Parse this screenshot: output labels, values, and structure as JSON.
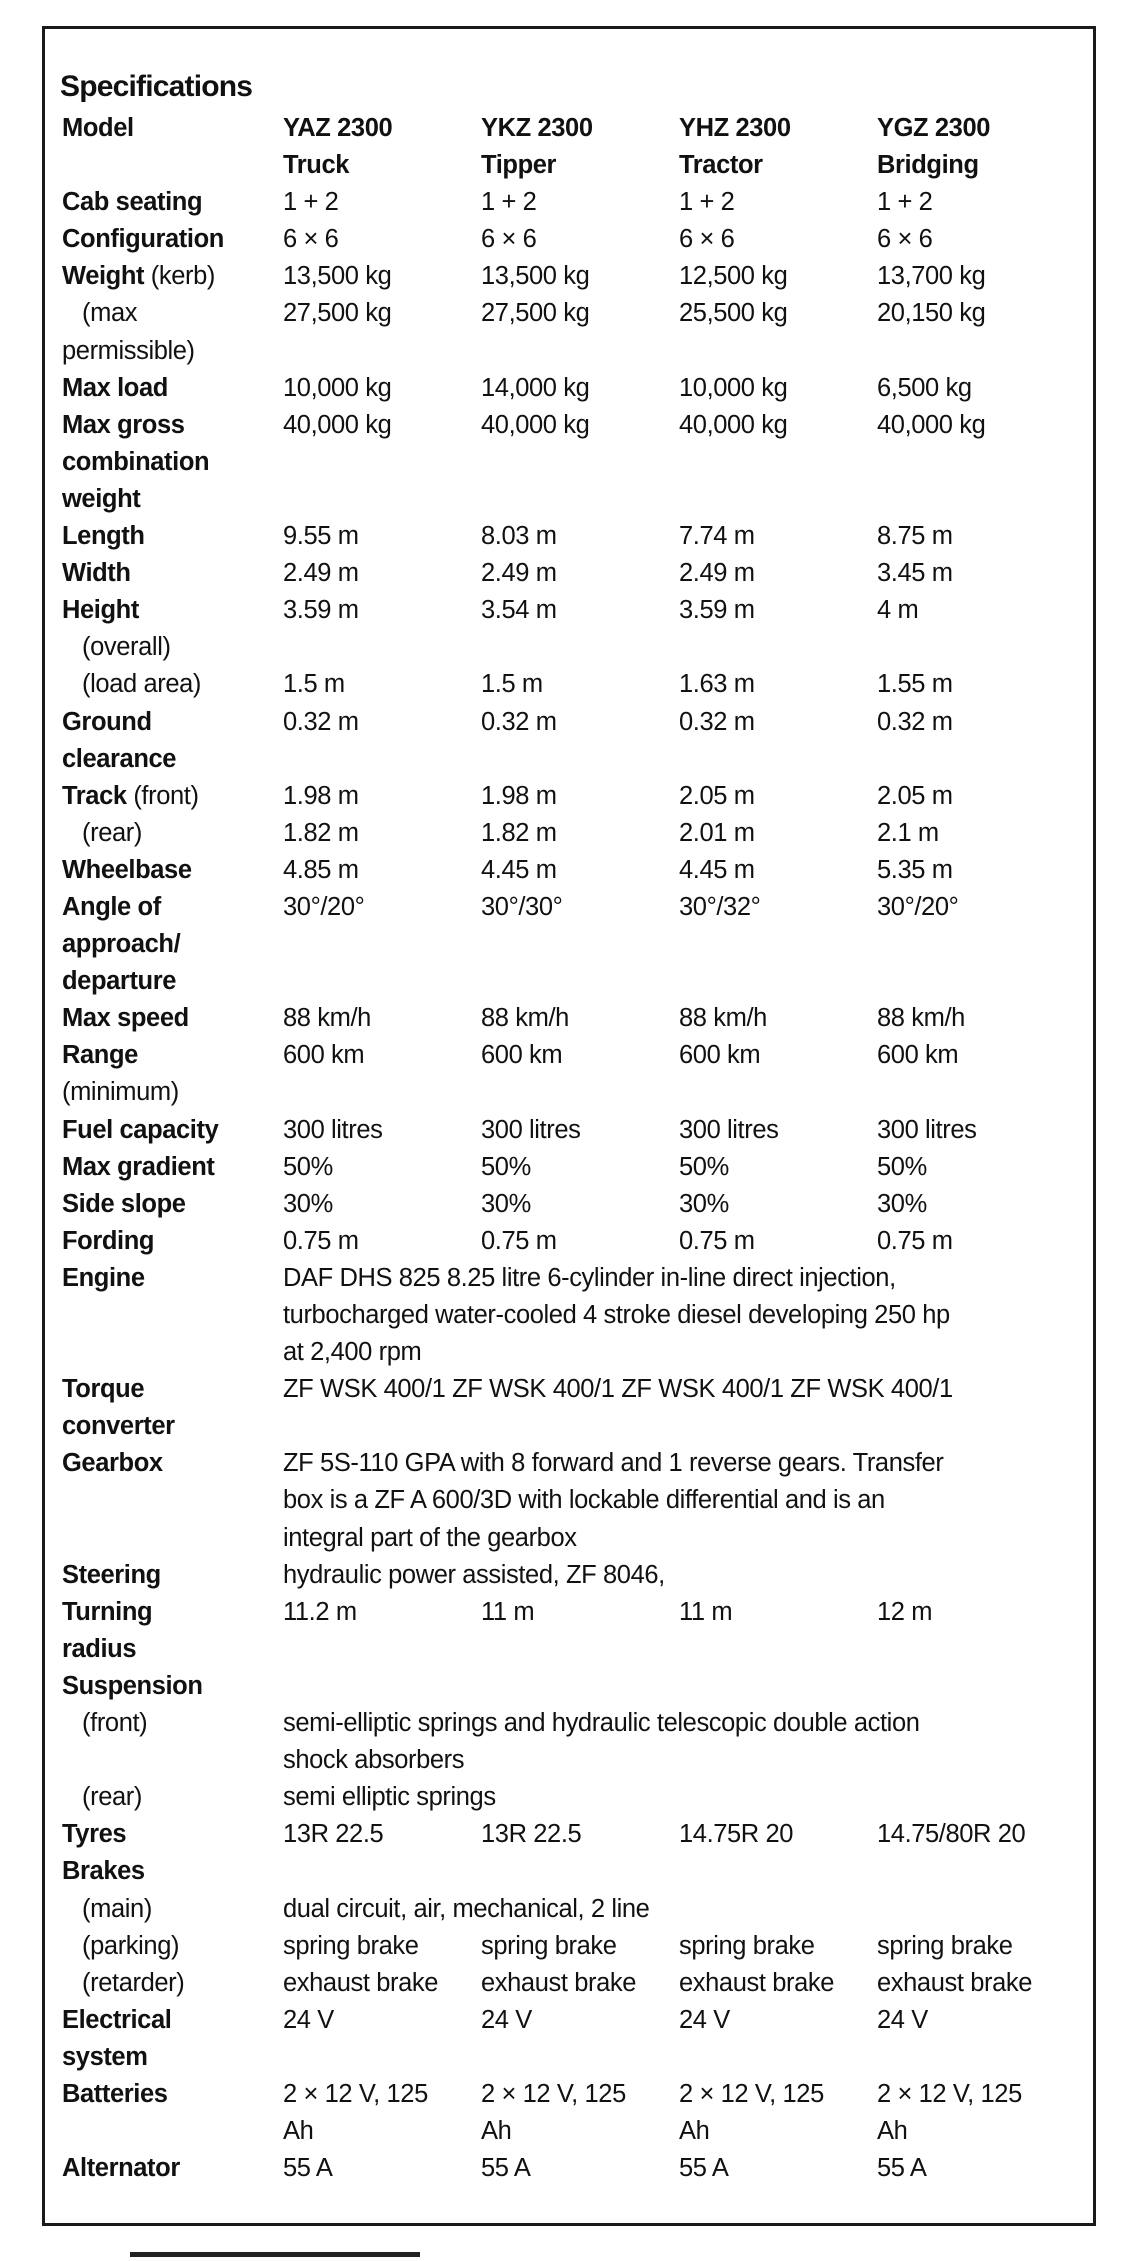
{
  "title": "Specifications",
  "rows": [
    {
      "b": "Model",
      "n": "",
      "v": [
        "YAZ 2300\nTruck",
        "YKZ 2300\nTipper",
        "YHZ 2300\nTractor",
        "YGZ 2300\nBridging"
      ],
      "cls": "model"
    },
    {
      "b": "Cab seating",
      "n": "",
      "v": [
        "1 + 2",
        "1 + 2",
        "1 + 2",
        "1 + 2"
      ]
    },
    {
      "b": "Configuration",
      "n": "",
      "v": [
        "6 × 6",
        "6 × 6",
        "6 × 6",
        "6 × 6"
      ]
    },
    {
      "b": "Weight",
      "n": " (kerb)",
      "v": [
        "13,500 kg",
        "13,500 kg",
        "12,500 kg",
        "13,700 kg"
      ]
    },
    {
      "b": "",
      "n": "   (max\npermissible)",
      "v": [
        "27,500 kg",
        "27,500 kg",
        "25,500 kg",
        "20,150 kg"
      ]
    },
    {
      "b": "Max load",
      "n": "",
      "v": [
        "10,000 kg",
        "14,000 kg",
        "10,000 kg",
        "6,500 kg"
      ]
    },
    {
      "b": "Max gross\ncombination\nweight",
      "n": "",
      "v": [
        "40,000 kg",
        "40,000 kg",
        "40,000 kg",
        "40,000 kg"
      ]
    },
    {
      "b": "Length",
      "n": "",
      "v": [
        "9.55 m",
        "8.03 m",
        "7.74 m",
        "8.75 m"
      ]
    },
    {
      "b": "Width",
      "n": "",
      "v": [
        "2.49 m",
        "2.49 m",
        "2.49 m",
        "3.45 m"
      ]
    },
    {
      "b": "Height",
      "n": "\n   (overall)",
      "v": [
        "3.59 m",
        "3.54 m",
        "3.59 m",
        "4 m"
      ]
    },
    {
      "b": "",
      "n": "   (load area)",
      "v": [
        "1.5 m",
        "1.5 m",
        "1.63 m",
        "1.55 m"
      ]
    },
    {
      "b": "Ground\nclearance",
      "n": "",
      "v": [
        "0.32 m",
        "0.32 m",
        "0.32 m",
        "0.32 m"
      ]
    },
    {
      "b": "Track",
      "n": " (front)",
      "v": [
        "1.98 m",
        "1.98 m",
        "2.05 m",
        "2.05 m"
      ]
    },
    {
      "b": "",
      "n": "   (rear)",
      "v": [
        "1.82 m",
        "1.82 m",
        "2.01 m",
        "2.1 m"
      ]
    },
    {
      "b": "Wheelbase",
      "n": "",
      "v": [
        "4.85 m",
        "4.45 m",
        "4.45 m",
        "5.35 m"
      ]
    },
    {
      "b": "Angle of\napproach/\ndeparture",
      "n": "",
      "v": [
        "30°/20°",
        "30°/30°",
        "30°/32°",
        "30°/20°"
      ]
    },
    {
      "b": "Max speed",
      "n": "",
      "v": [
        "88 km/h",
        "88 km/h",
        "88 km/h",
        "88 km/h"
      ]
    },
    {
      "b": "Range",
      "n": "\n(minimum)",
      "v": [
        "600 km",
        "600 km",
        "600 km",
        "600 km"
      ]
    },
    {
      "b": "Fuel capacity",
      "n": "",
      "v": [
        "300 litres",
        "300 litres",
        "300 litres",
        "300 litres"
      ]
    },
    {
      "b": "Max gradient",
      "n": "",
      "v": [
        "50%",
        "50%",
        "50%",
        "50%"
      ]
    },
    {
      "b": "Side slope",
      "n": "",
      "v": [
        "30%",
        "30%",
        "30%",
        "30%"
      ]
    },
    {
      "b": "Fording",
      "n": "",
      "v": [
        "0.75 m",
        "0.75 m",
        "0.75 m",
        "0.75 m"
      ]
    },
    {
      "b": "Engine",
      "n": "",
      "s": "DAF DHS 825 8.25 litre 6-cylinder in-line direct injection,\nturbocharged water-cooled 4 stroke diesel developing 250 hp\nat 2,400 rpm"
    },
    {
      "b": "Torque\nconverter",
      "n": "",
      "s": "ZF WSK 400/1 ZF WSK 400/1 ZF WSK 400/1 ZF WSK 400/1"
    },
    {
      "b": "Gearbox",
      "n": "",
      "s": "ZF 5S-110 GPA with 8 forward and 1 reverse gears. Transfer\nbox is a ZF A 600/3D with lockable differential and is an\nintegral part of the gearbox"
    },
    {
      "b": "Steering",
      "n": "",
      "s": "hydraulic power assisted, ZF 8046,"
    },
    {
      "b": "Turning\nradius",
      "n": "",
      "v": [
        "11.2 m",
        "11 m",
        "11 m",
        "12 m"
      ]
    },
    {
      "b": "Suspension",
      "n": "",
      "s": ""
    },
    {
      "b": "",
      "n": "   (front)",
      "s": "semi-elliptic springs and hydraulic telescopic double action\nshock absorbers"
    },
    {
      "b": "",
      "n": "   (rear)",
      "s": "semi elliptic springs"
    },
    {
      "b": "Tyres",
      "n": "",
      "v": [
        "13R 22.5",
        "13R 22.5",
        "14.75R 20",
        "14.75/80R 20"
      ]
    },
    {
      "b": "Brakes",
      "n": "",
      "s": ""
    },
    {
      "b": "",
      "n": "   (main)",
      "s": "dual circuit, air, mechanical, 2 line"
    },
    {
      "b": "",
      "n": "   (parking)",
      "v": [
        "spring brake",
        "spring brake",
        "spring brake",
        "spring brake"
      ]
    },
    {
      "b": "",
      "n": "   (retarder)",
      "v": [
        "exhaust brake",
        "exhaust brake",
        "exhaust brake",
        "exhaust brake"
      ]
    },
    {
      "b": "Electrical\nsystem",
      "n": "",
      "v": [
        "24 V",
        "24 V",
        "24 V",
        "24 V"
      ]
    },
    {
      "b": "Batteries",
      "n": "",
      "v": [
        "2 × 12 V, 125\nAh",
        "2 × 12 V, 125\nAh",
        "2 × 12 V, 125\nAh",
        "2 × 12 V, 125\nAh"
      ]
    },
    {
      "b": "Alternator",
      "n": "",
      "v": [
        "55 A",
        "55 A",
        "55 A",
        "55 A"
      ]
    }
  ]
}
